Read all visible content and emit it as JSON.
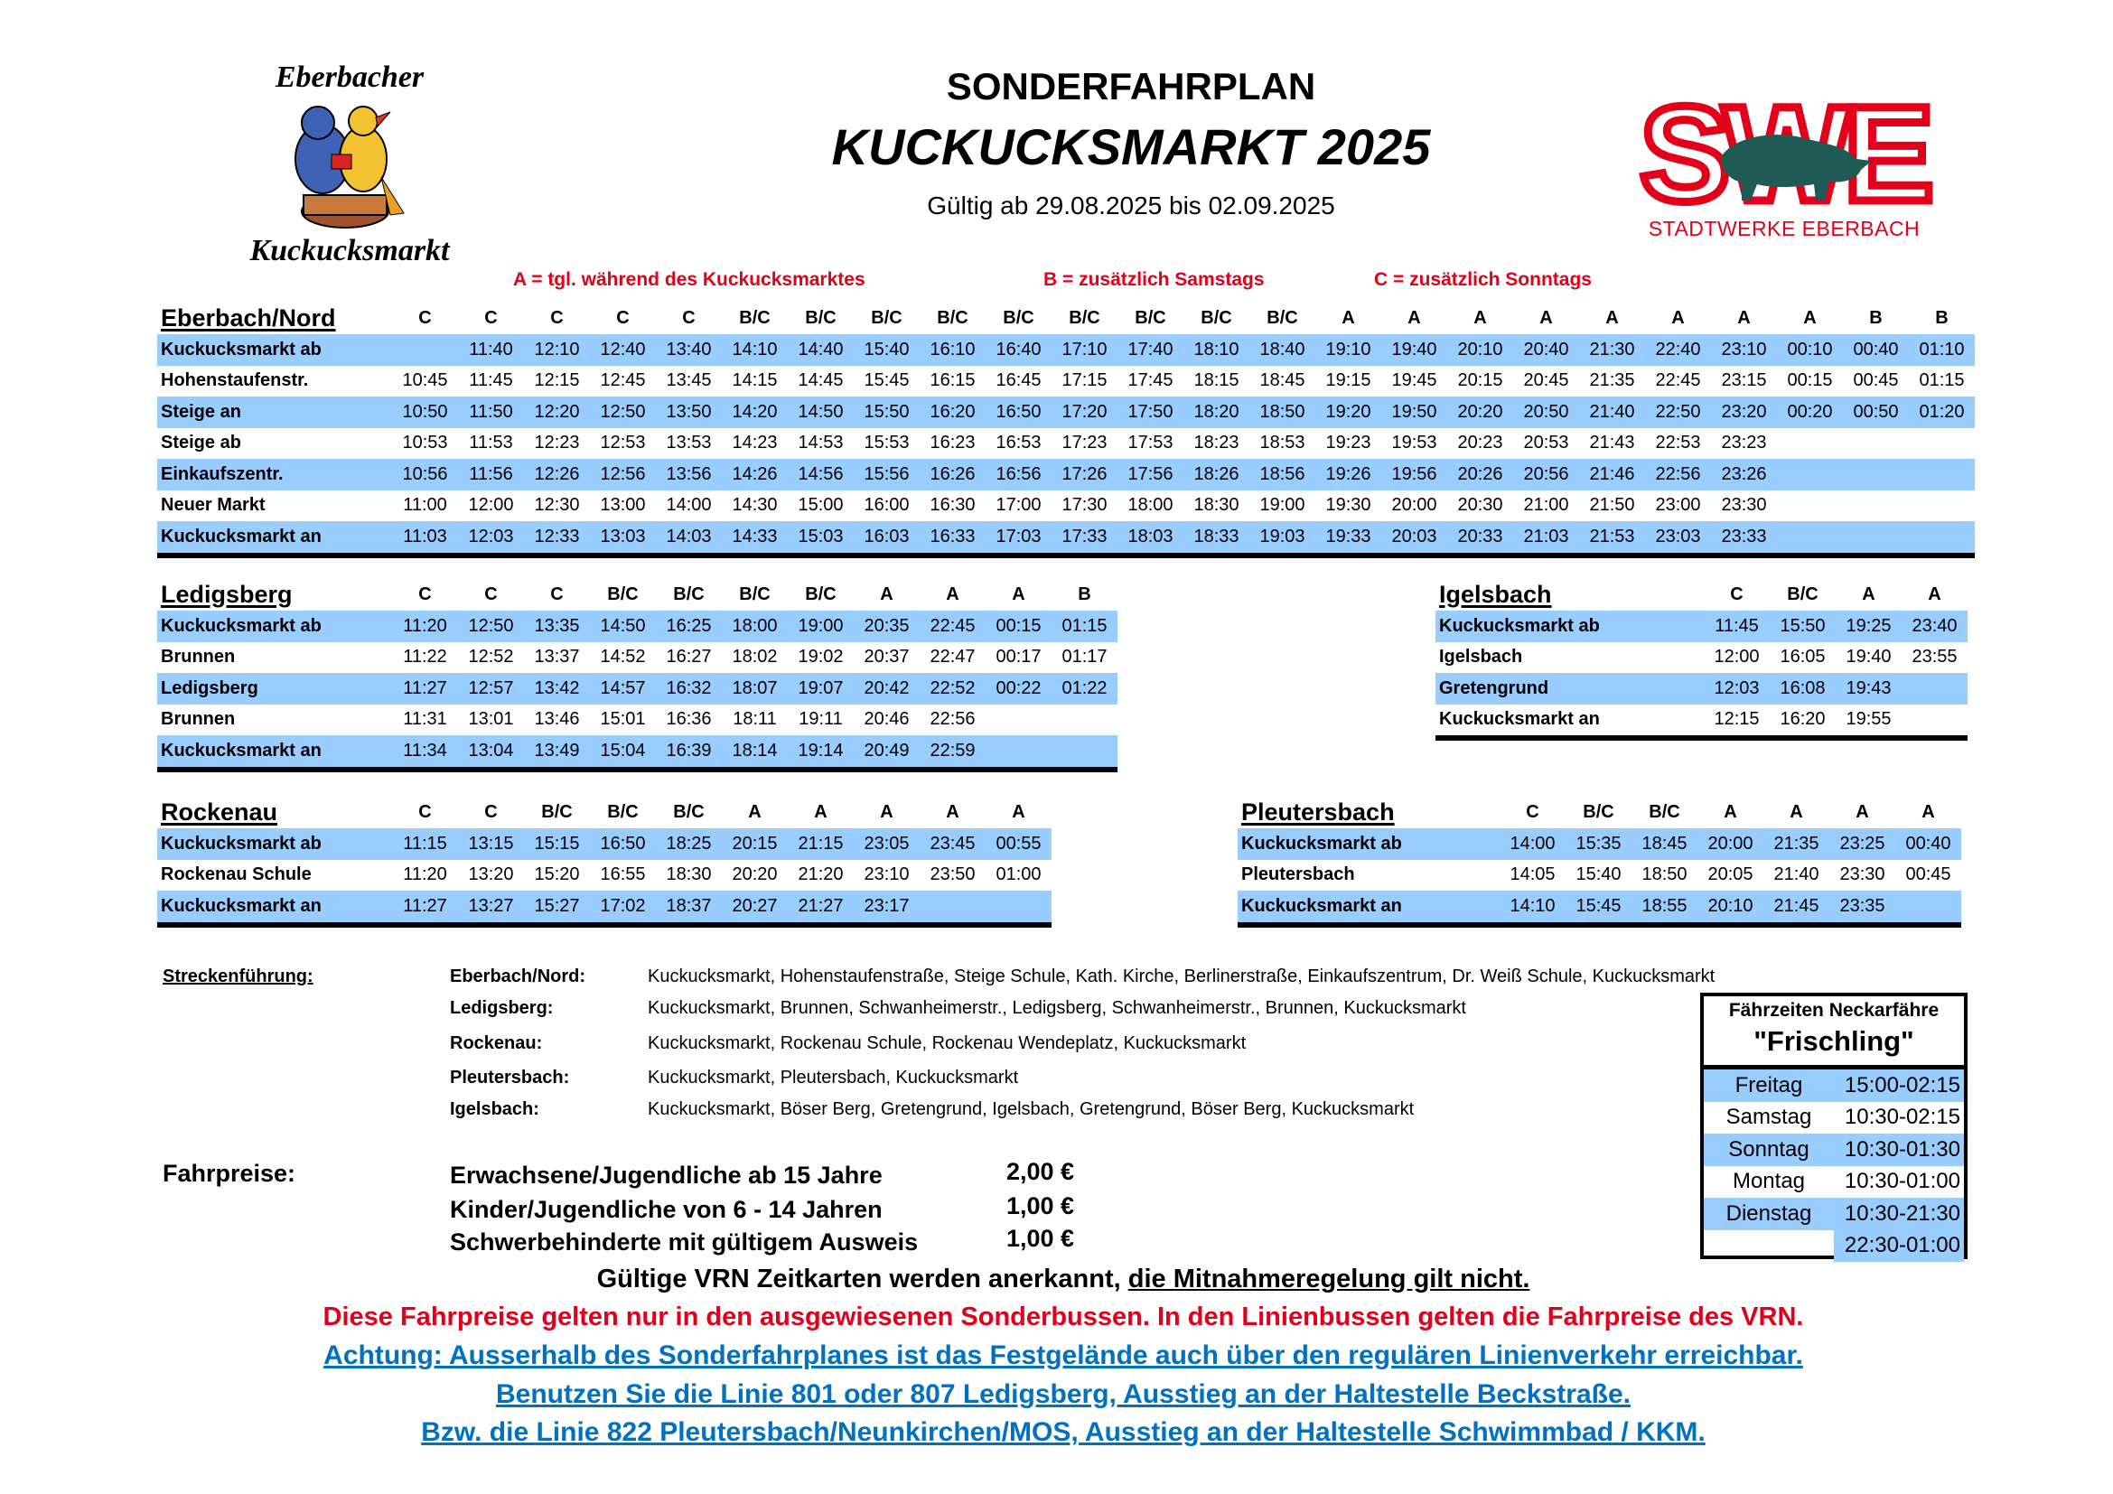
{
  "header": {
    "subtitle": "SONDERFAHRPLAN",
    "title": "KUCKUCKSMARKT 2025",
    "validity": "Gültig ab 29.08.2025 bis 02.09.2025"
  },
  "logos": {
    "event_logo_top": "Eberbacher",
    "event_logo_bottom": "Kuckucksmarkt",
    "swe_letters": "SWE",
    "swe_name": "STADTWERKE EBERBACH"
  },
  "colors": {
    "row_highlight": "#99ccff",
    "legend_red": "#e0001b",
    "link_blue": "#0070c0",
    "swe_red": "#e2001a",
    "swe_boar": "#1f5a55"
  },
  "legend": {
    "a": "A = tgl. während des Kuckucksmarktes",
    "b": "B = zusätzlich Samstags",
    "c": "C = zusätzlich Sonntags"
  },
  "tables": [
    {
      "id": "eberbach",
      "title": "Eberbach/Nord",
      "columns": [
        "C",
        "C",
        "C",
        "C",
        "C",
        "B/C",
        "B/C",
        "B/C",
        "B/C",
        "B/C",
        "B/C",
        "B/C",
        "B/C",
        "B/C",
        "A",
        "A",
        "A",
        "A",
        "A",
        "A",
        "A",
        "A",
        "B",
        "B"
      ],
      "rows": [
        {
          "stop": "Kuckucksmarkt ab",
          "times": [
            "",
            "11:40",
            "12:10",
            "12:40",
            "13:40",
            "14:10",
            "14:40",
            "15:40",
            "16:10",
            "16:40",
            "17:10",
            "17:40",
            "18:10",
            "18:40",
            "19:10",
            "19:40",
            "20:10",
            "20:40",
            "21:30",
            "22:40",
            "23:10",
            "00:10",
            "00:40",
            "01:10"
          ]
        },
        {
          "stop": "Hohenstaufenstr.",
          "times": [
            "10:45",
            "11:45",
            "12:15",
            "12:45",
            "13:45",
            "14:15",
            "14:45",
            "15:45",
            "16:15",
            "16:45",
            "17:15",
            "17:45",
            "18:15",
            "18:45",
            "19:15",
            "19:45",
            "20:15",
            "20:45",
            "21:35",
            "22:45",
            "23:15",
            "00:15",
            "00:45",
            "01:15"
          ]
        },
        {
          "stop": "Steige an",
          "times": [
            "10:50",
            "11:50",
            "12:20",
            "12:50",
            "13:50",
            "14:20",
            "14:50",
            "15:50",
            "16:20",
            "16:50",
            "17:20",
            "17:50",
            "18:20",
            "18:50",
            "19:20",
            "19:50",
            "20:20",
            "20:50",
            "21:40",
            "22:50",
            "23:20",
            "00:20",
            "00:50",
            "01:20"
          ]
        },
        {
          "stop": "Steige ab",
          "times": [
            "10:53",
            "11:53",
            "12:23",
            "12:53",
            "13:53",
            "14:23",
            "14:53",
            "15:53",
            "16:23",
            "16:53",
            "17:23",
            "17:53",
            "18:23",
            "18:53",
            "19:23",
            "19:53",
            "20:23",
            "20:53",
            "21:43",
            "22:53",
            "23:23",
            "",
            "",
            ""
          ]
        },
        {
          "stop": "Einkaufszentr.",
          "times": [
            "10:56",
            "11:56",
            "12:26",
            "12:56",
            "13:56",
            "14:26",
            "14:56",
            "15:56",
            "16:26",
            "16:56",
            "17:26",
            "17:56",
            "18:26",
            "18:56",
            "19:26",
            "19:56",
            "20:26",
            "20:56",
            "21:46",
            "22:56",
            "23:26",
            "",
            "",
            ""
          ]
        },
        {
          "stop": "Neuer Markt",
          "times": [
            "11:00",
            "12:00",
            "12:30",
            "13:00",
            "14:00",
            "14:30",
            "15:00",
            "16:00",
            "16:30",
            "17:00",
            "17:30",
            "18:00",
            "18:30",
            "19:00",
            "19:30",
            "20:00",
            "20:30",
            "21:00",
            "21:50",
            "23:00",
            "23:30",
            "",
            "",
            ""
          ]
        },
        {
          "stop": "Kuckucksmarkt an",
          "times": [
            "11:03",
            "12:03",
            "12:33",
            "13:03",
            "14:03",
            "14:33",
            "15:03",
            "16:03",
            "16:33",
            "17:03",
            "17:33",
            "18:03",
            "18:33",
            "19:03",
            "19:33",
            "20:03",
            "20:33",
            "21:03",
            "21:53",
            "23:03",
            "23:33",
            "",
            "",
            ""
          ]
        }
      ]
    },
    {
      "id": "ledigsberg",
      "title": "Ledigsberg",
      "columns": [
        "C",
        "C",
        "C",
        "B/C",
        "B/C",
        "B/C",
        "B/C",
        "A",
        "A",
        "A",
        "B"
      ],
      "rows": [
        {
          "stop": "Kuckucksmarkt ab",
          "times": [
            "11:20",
            "12:50",
            "13:35",
            "14:50",
            "16:25",
            "18:00",
            "19:00",
            "20:35",
            "22:45",
            "00:15",
            "01:15"
          ]
        },
        {
          "stop": "Brunnen",
          "times": [
            "11:22",
            "12:52",
            "13:37",
            "14:52",
            "16:27",
            "18:02",
            "19:02",
            "20:37",
            "22:47",
            "00:17",
            "01:17"
          ]
        },
        {
          "stop": "Ledigsberg",
          "times": [
            "11:27",
            "12:57",
            "13:42",
            "14:57",
            "16:32",
            "18:07",
            "19:07",
            "20:42",
            "22:52",
            "00:22",
            "01:22"
          ]
        },
        {
          "stop": "Brunnen",
          "times": [
            "11:31",
            "13:01",
            "13:46",
            "15:01",
            "16:36",
            "18:11",
            "19:11",
            "20:46",
            "22:56",
            "",
            ""
          ]
        },
        {
          "stop": "Kuckucksmarkt an",
          "times": [
            "11:34",
            "13:04",
            "13:49",
            "15:04",
            "16:39",
            "18:14",
            "19:14",
            "20:49",
            "22:59",
            "",
            ""
          ]
        }
      ]
    },
    {
      "id": "igelsbach",
      "title": "Igelsbach",
      "columns": [
        "C",
        "B/C",
        "A",
        "A"
      ],
      "rows": [
        {
          "stop": "Kuckucksmarkt ab",
          "times": [
            "11:45",
            "15:50",
            "19:25",
            "23:40"
          ]
        },
        {
          "stop": "Igelsbach",
          "times": [
            "12:00",
            "16:05",
            "19:40",
            "23:55"
          ]
        },
        {
          "stop": "Gretengrund",
          "times": [
            "12:03",
            "16:08",
            "19:43",
            ""
          ]
        },
        {
          "stop": "Kuckucksmarkt an",
          "times": [
            "12:15",
            "16:20",
            "19:55",
            ""
          ]
        }
      ]
    },
    {
      "id": "rockenau",
      "title": "Rockenau",
      "columns": [
        "C",
        "C",
        "B/C",
        "B/C",
        "B/C",
        "A",
        "A",
        "A",
        "A",
        "A"
      ],
      "rows": [
        {
          "stop": "Kuckucksmarkt ab",
          "times": [
            "11:15",
            "13:15",
            "15:15",
            "16:50",
            "18:25",
            "20:15",
            "21:15",
            "23:05",
            "23:45",
            "00:55"
          ]
        },
        {
          "stop": "Rockenau Schule",
          "times": [
            "11:20",
            "13:20",
            "15:20",
            "16:55",
            "18:30",
            "20:20",
            "21:20",
            "23:10",
            "23:50",
            "01:00"
          ]
        },
        {
          "stop": "Kuckucksmarkt an",
          "times": [
            "11:27",
            "13:27",
            "15:27",
            "17:02",
            "18:37",
            "20:27",
            "21:27",
            "23:17",
            "",
            ""
          ]
        }
      ]
    },
    {
      "id": "pleutersbach",
      "title": "Pleutersbach",
      "columns": [
        "C",
        "B/C",
        "B/C",
        "A",
        "A",
        "A",
        "A"
      ],
      "rows": [
        {
          "stop": "Kuckucksmarkt ab",
          "times": [
            "14:00",
            "15:35",
            "18:45",
            "20:00",
            "21:35",
            "23:25",
            "00:40"
          ]
        },
        {
          "stop": "Pleutersbach",
          "times": [
            "14:05",
            "15:40",
            "18:50",
            "20:05",
            "21:40",
            "23:30",
            "00:45"
          ]
        },
        {
          "stop": "Kuckucksmarkt an",
          "times": [
            "14:10",
            "15:45",
            "18:55",
            "20:10",
            "21:45",
            "23:35",
            ""
          ]
        }
      ]
    }
  ],
  "routes": {
    "label": "Streckenführung:",
    "items": [
      {
        "name": "Eberbach/Nord:",
        "path": "Kuckucksmarkt, Hohenstaufenstraße, Steige Schule, Kath. Kirche, Berlinerstraße, Einkaufszentrum, Dr. Weiß Schule, Kuckucksmarkt"
      },
      {
        "name": "Ledigsberg:",
        "path": "Kuckucksmarkt, Brunnen, Schwanheimerstr., Ledigsberg, Schwanheimerstr., Brunnen, Kuckucksmarkt"
      },
      {
        "name": "Rockenau:",
        "path": "Kuckucksmarkt, Rockenau Schule, Rockenau Wendeplatz, Kuckucksmarkt"
      },
      {
        "name": "Pleutersbach:",
        "path": "Kuckucksmarkt, Pleutersbach, Kuckucksmarkt"
      },
      {
        "name": "Igelsbach:",
        "path": "Kuckucksmarkt, Böser Berg, Gretengrund, Igelsbach, Gretengrund, Böser Berg, Kuckucksmarkt"
      }
    ]
  },
  "fares": {
    "label": "Fahrpreise:",
    "items": [
      {
        "group": "Erwachsene/Jugendliche ab 15 Jahre",
        "price": "2,00 €"
      },
      {
        "group": "Kinder/Jugendliche von 6 - 14 Jahren",
        "price": "1,00 €"
      },
      {
        "group": "Schwerbehinderte mit gültigem Ausweis",
        "price": "1,00 €"
      }
    ]
  },
  "ferry": {
    "title": "Fährzeiten Neckarfähre",
    "name": "\"Frischling\"",
    "rows": [
      {
        "day": "Freitag",
        "time": "15:00-02:15"
      },
      {
        "day": "Samstag",
        "time": "10:30-02:15"
      },
      {
        "day": "Sonntag",
        "time": "10:30-01:30"
      },
      {
        "day": "Montag",
        "time": "10:30-01:00"
      },
      {
        "day": "Dienstag",
        "time": "10:30-21:30"
      },
      {
        "day": "",
        "time": "22:30-01:00"
      }
    ]
  },
  "notes": {
    "vrn_text": "Gültige VRN Zeitkarten werden anerkannt, ",
    "vrn_underlined": "die Mitnahmeregelung gilt nicht.",
    "fare_note": "Diese Fahrpreise gelten nur in den ausgewiesenen Sonderbussen. In den Linienbussen gelten die Fahrpreise des VRN.",
    "link1": "Achtung: Ausserhalb des Sonderfahrplanes ist das Festgelände auch über den regulären Linienverkehr erreichbar.",
    "link2": "Benutzen Sie die Linie 801 oder 807 Ledigsberg, Ausstieg an der Haltestelle Beckstraße.",
    "link3": "Bzw. die Linie 822 Pleutersbach/Neunkirchen/MOS, Ausstieg an der Haltestelle Schwimmbad / KKM."
  }
}
